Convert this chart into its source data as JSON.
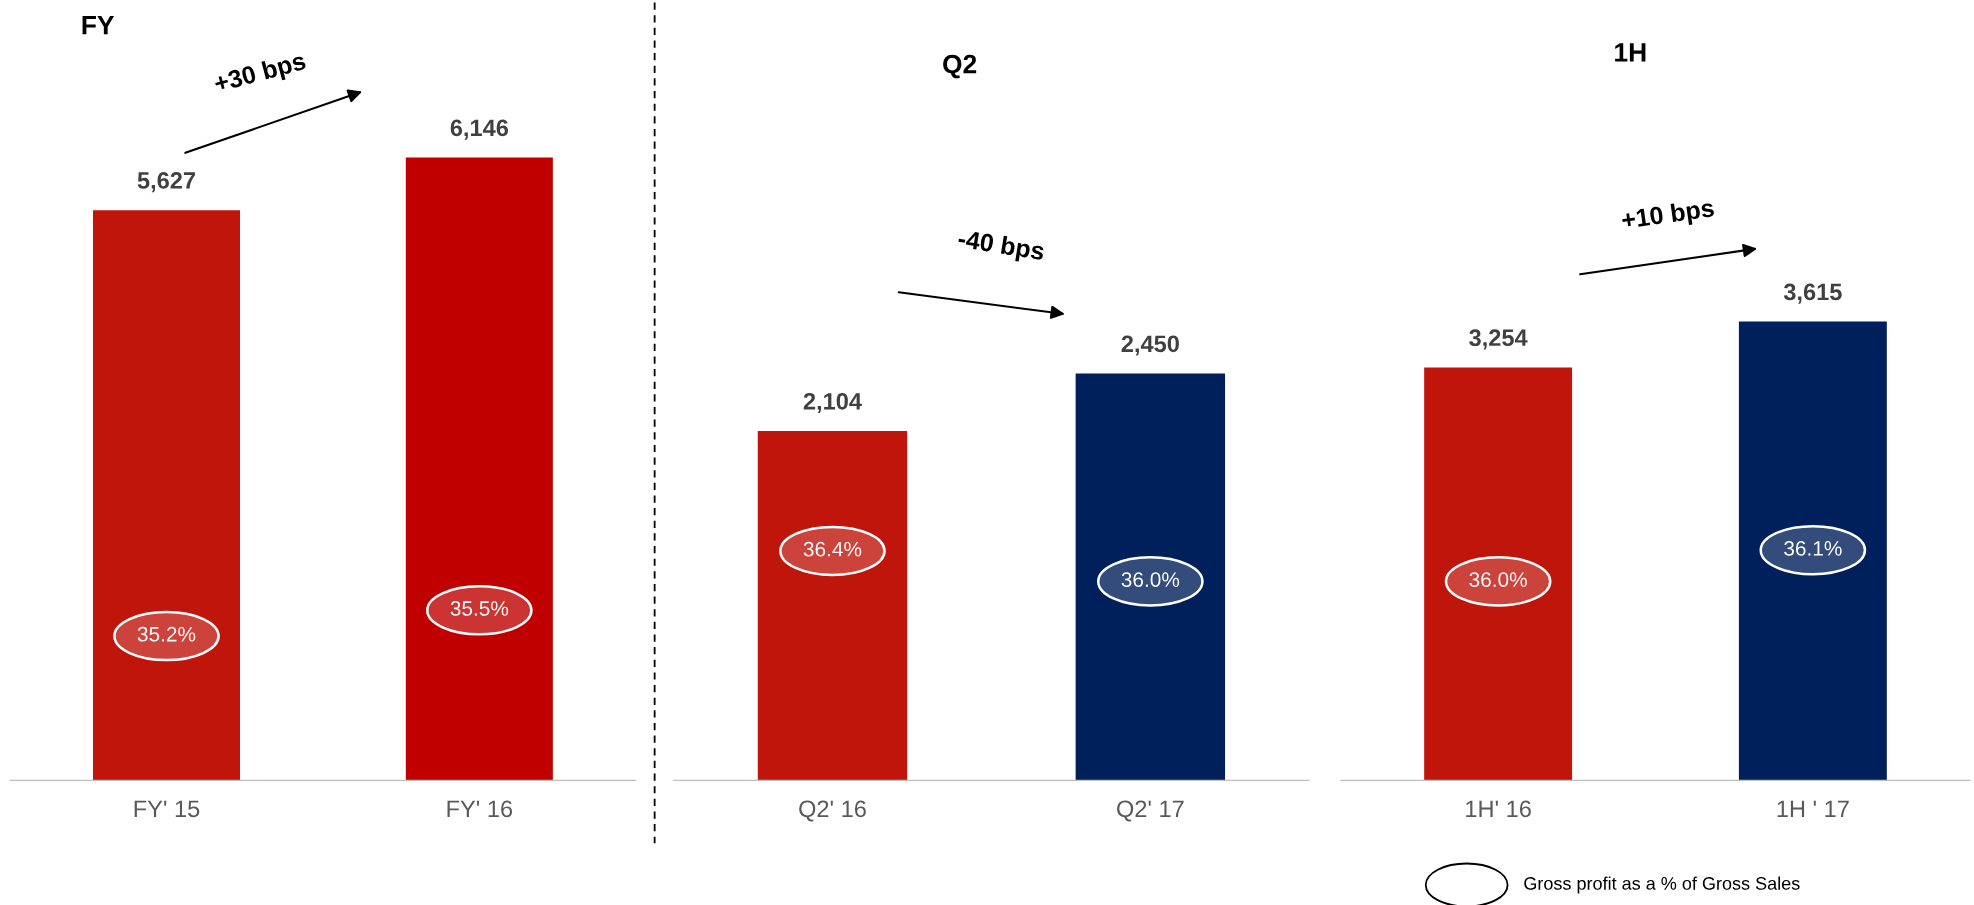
{
  "chart_data": [
    {
      "type": "bar",
      "title": "FY",
      "categories": [
        "FY' 15",
        "FY' 16"
      ],
      "values": [
        5627,
        6146
      ],
      "colors": [
        "#c0150a",
        "#c00000"
      ],
      "tick_labels": "x",
      "value_labels": [
        "5,627",
        "6,146"
      ],
      "annotations": [
        "35.2%",
        "35.5%",
        "+30 bps"
      ]
    },
    {
      "type": "bar",
      "title": "Q2",
      "categories": [
        "Q2' 16",
        "Q2' 17"
      ],
      "values": [
        2104,
        2450
      ],
      "colors": [
        "#c0150a",
        "#00205b"
      ],
      "tick_labels": "x",
      "value_labels": [
        "2,104",
        "2,450"
      ],
      "annotations": [
        "36.4%",
        "36.0%",
        "-40 bps"
      ]
    },
    {
      "type": "bar",
      "title": "1H",
      "categories": [
        "1H' 16",
        "1H ' 17"
      ],
      "values": [
        3254,
        3615
      ],
      "colors": [
        "#c0150a",
        "#00205b"
      ],
      "tick_labels": "x",
      "value_labels": [
        "3,254",
        "3,615"
      ],
      "annotations": [
        "36.0%",
        "36.1%",
        "+10 bps",
        "Gross profit as a % of Gross Sales"
      ]
    }
  ]
}
